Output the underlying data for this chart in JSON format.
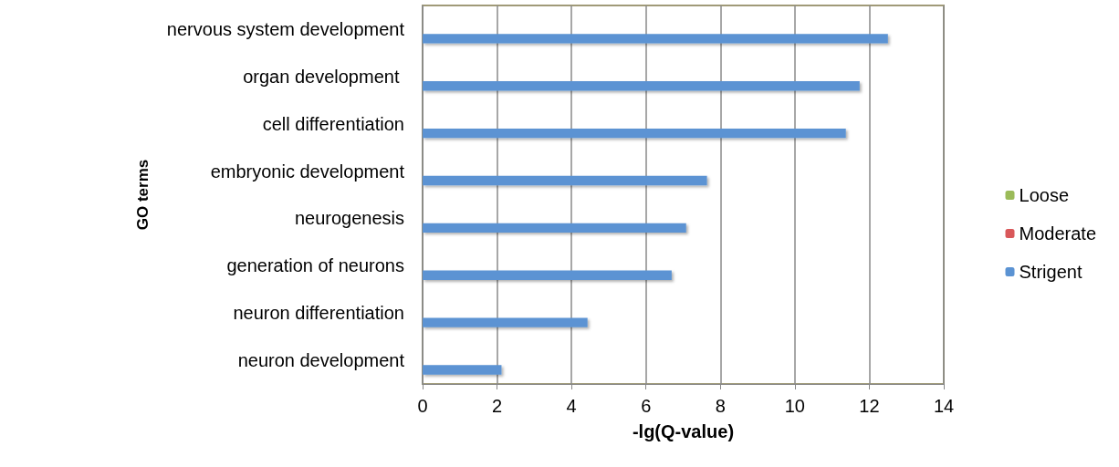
{
  "chart_data": {
    "type": "bar",
    "orientation": "horizontal",
    "xlabel": "-lg(Q-value)",
    "ylabel": "GO terms",
    "categories": [
      "nervous system development",
      "organ development ",
      "cell differentiation",
      "embryonic development",
      "neurogenesis",
      "generation of neurons",
      "neuron differentiation",
      "neuron development"
    ],
    "series": [
      {
        "name": "Loose",
        "color": "#9bbb59",
        "values": [
          null,
          null,
          null,
          null,
          null,
          null,
          null,
          null
        ]
      },
      {
        "name": "Moderate",
        "color": "#d9585a",
        "values": [
          null,
          null,
          null,
          null,
          null,
          null,
          null,
          null
        ]
      },
      {
        "name": "Strigent",
        "color": "#5b93d3",
        "values": [
          12.5,
          11.74,
          11.37,
          7.64,
          7.08,
          6.69,
          4.43,
          2.12
        ]
      }
    ],
    "xlim": [
      0,
      14
    ],
    "xticks": [
      0,
      2,
      4,
      6,
      8,
      10,
      12,
      14
    ],
    "grid": "x",
    "legend": "right"
  }
}
